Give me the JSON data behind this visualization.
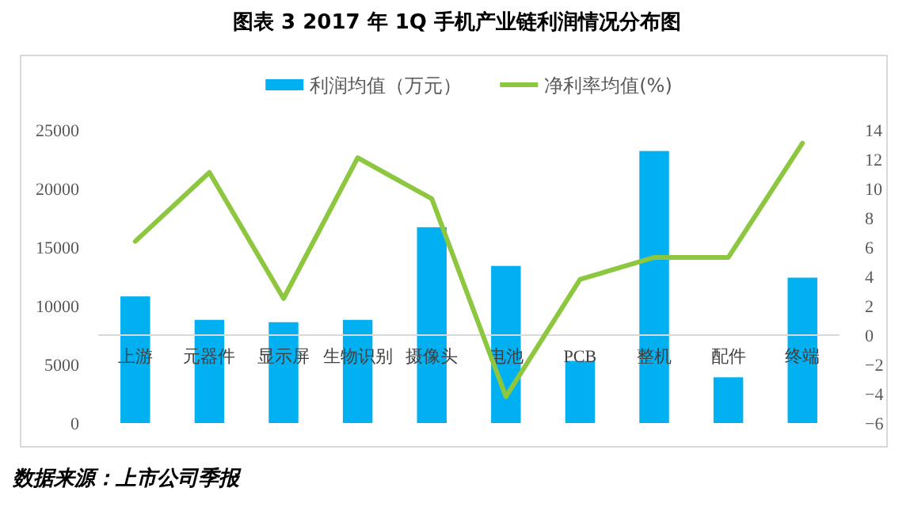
{
  "chart_data": {
    "type": "bar",
    "title": "图表 3    2017 年 1Q 手机产业链利润情况分布图",
    "categories": [
      "上游",
      "元器件",
      "显示屏",
      "生物识别",
      "摄像头",
      "电池",
      "PCB",
      "整机",
      "配件",
      "终端"
    ],
    "series": [
      {
        "name": "利润均值（万元）",
        "color": "#00b0f0",
        "values": [
          10800,
          8800,
          8600,
          8800,
          16700,
          13400,
          5300,
          23200,
          3900,
          12400
        ]
      },
      {
        "name": "净利率均值(%)",
        "type": "line",
        "axis": "y2",
        "color": "#8dc63f",
        "values": [
          6.4,
          11.1,
          2.5,
          12.1,
          9.3,
          -4.2,
          3.8,
          5.3,
          5.3,
          13.1
        ]
      }
    ],
    "ylim": [
      0,
      25000
    ],
    "yticks": [
      0,
      5000,
      10000,
      15000,
      20000,
      25000
    ],
    "y2lim": [
      -6,
      14
    ],
    "y2ticks": [
      -6,
      -4,
      -2,
      0,
      2,
      4,
      6,
      8,
      10,
      12,
      14
    ],
    "legend": "top",
    "grid": false,
    "annotations": [
      "数据来源：上市公司季报"
    ]
  }
}
